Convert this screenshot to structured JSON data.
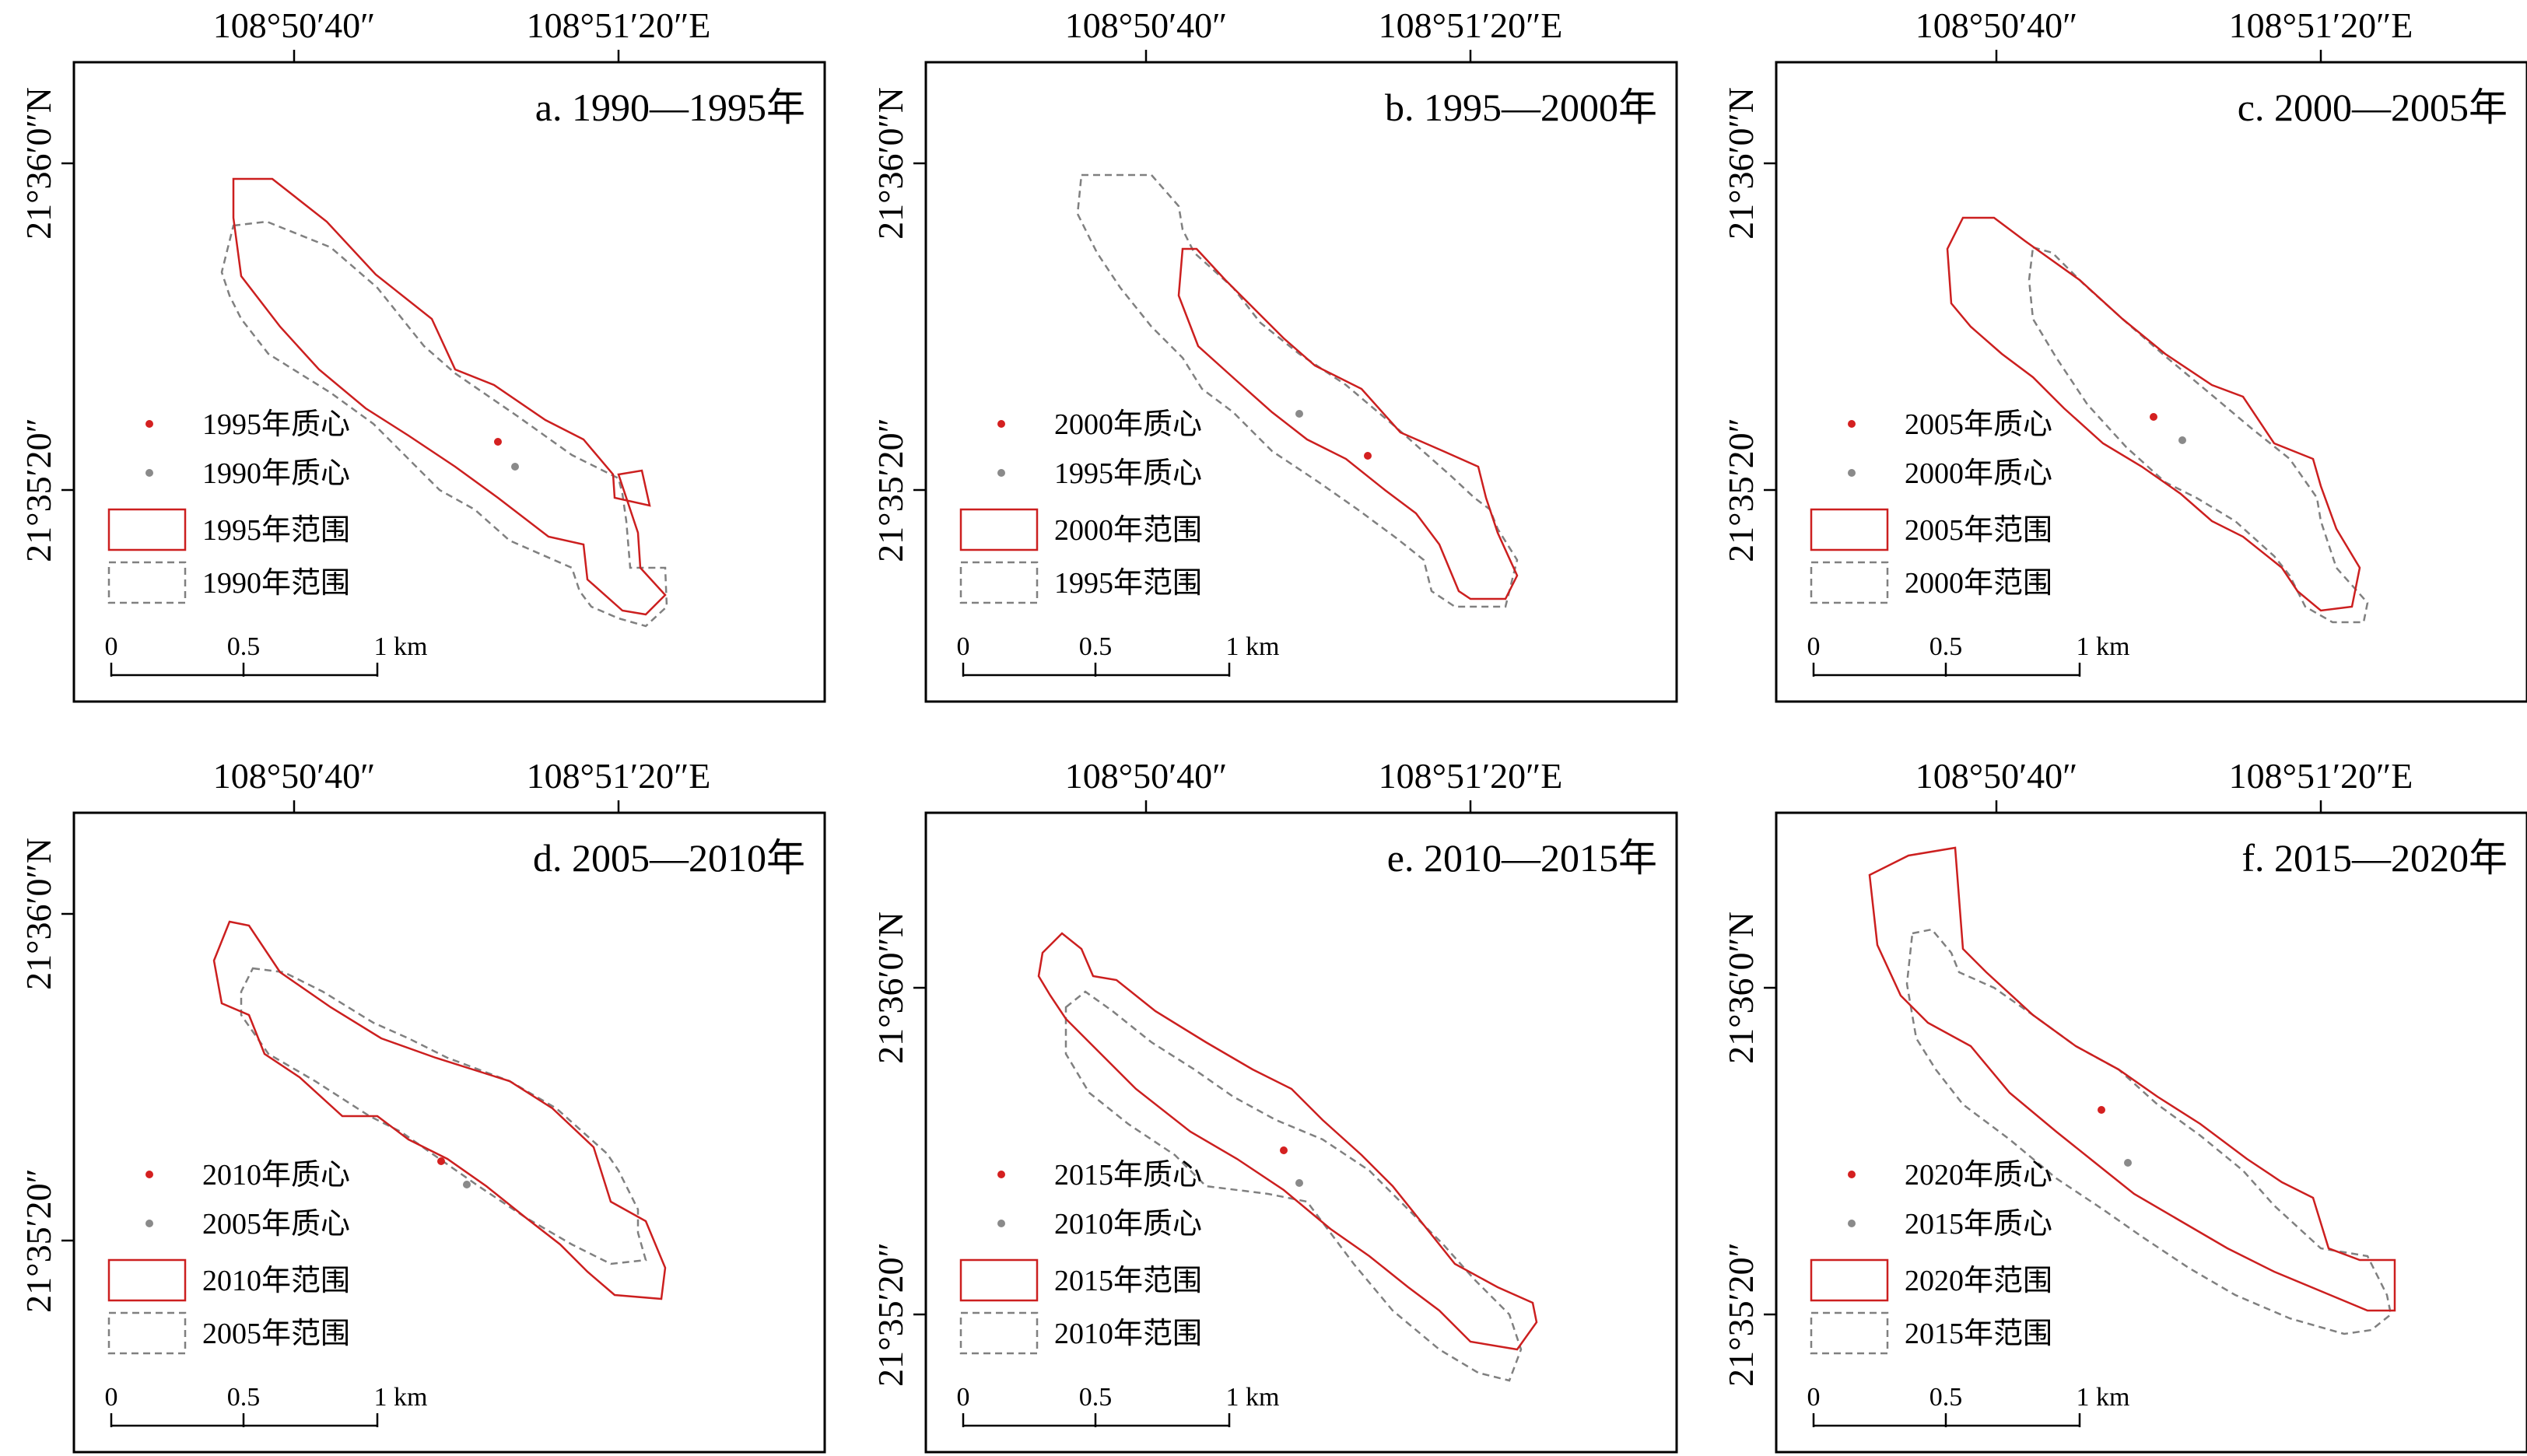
{
  "colors": {
    "current_boundary": "#cc1f1f",
    "previous_boundary": "#808080",
    "current_centroid": "#d42020",
    "previous_centroid": "#8a8a8a",
    "frame": "#000000"
  },
  "axis_labels": {
    "lon_left": "108°50′40″",
    "lon_right": "108°51′20″E",
    "lat_upper": "21°36′0″N",
    "lat_lower": "21°35′20″"
  },
  "scale_bar": {
    "tick_0": "0",
    "tick_mid": "0.5",
    "tick_end": "1 km"
  },
  "panels": [
    {
      "title": "a. 1990—1995年",
      "legend": {
        "current_centroid": "1995年质心",
        "previous_centroid": "1990年质心",
        "current_extent": "1995年范围",
        "previous_extent": "1990年范围"
      },
      "centroid_current": [
        545,
        488
      ],
      "centroid_previous": [
        567,
        520
      ]
    },
    {
      "title": "b. 1995—2000年",
      "legend": {
        "current_centroid": "2000年质心",
        "previous_centroid": "1995年质心",
        "current_extent": "2000年范围",
        "previous_extent": "1995年范围"
      },
      "centroid_current": [
        568,
        506
      ],
      "centroid_previous": [
        480,
        452
      ]
    },
    {
      "title": "c. 2000—2005年",
      "legend": {
        "current_centroid": "2005年质心",
        "previous_centroid": "2000年质心",
        "current_extent": "2005年范围",
        "previous_extent": "2000年范围"
      },
      "centroid_current": [
        485,
        456
      ],
      "centroid_previous": [
        522,
        486
      ]
    },
    {
      "title": "d. 2005—2010年",
      "legend": {
        "current_centroid": "2010年质心",
        "previous_centroid": "2005年质心",
        "current_extent": "2010年范围",
        "previous_extent": "2005年范围"
      },
      "centroid_current": [
        472,
        448
      ],
      "centroid_previous": [
        505,
        478
      ]
    },
    {
      "title": "e. 2010—2015年",
      "legend": {
        "current_centroid": "2015年质心",
        "previous_centroid": "2010年质心",
        "current_extent": "2015年范围",
        "previous_extent": "2010年范围"
      },
      "centroid_current": [
        460,
        434
      ],
      "centroid_previous": [
        480,
        476
      ]
    },
    {
      "title": "f. 2015—2020年",
      "legend": {
        "current_centroid": "2020年质心",
        "previous_centroid": "2015年质心",
        "current_extent": "2020年范围",
        "previous_extent": "2015年范围"
      },
      "centroid_current": [
        418,
        382
      ],
      "centroid_previous": [
        452,
        450
      ]
    }
  ]
}
